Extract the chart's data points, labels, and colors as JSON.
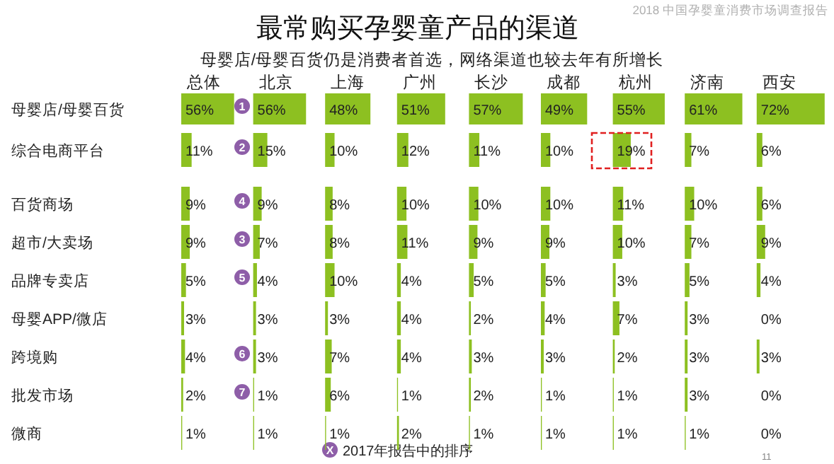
{
  "chart_data": [
    {
      "type": "other",
      "title": "最常购买孕婴童产品的渠道",
      "subtitle": "母婴店/母婴百货仍是消费者首选，网络渠道也较去年有所增长",
      "annotations": [
        "2018 中国孕婴童消费市场调查报告",
        "X",
        "2017年报告中的排序",
        "11"
      ]
    },
    {
      "type": "bar",
      "orientation": "horizontal",
      "title": "总体",
      "categories": [
        "母婴店/母婴百货",
        "综合电商平台",
        "百货商场",
        "超市/大卖场",
        "品牌专卖店",
        "母婴APP/微店",
        "跨境购",
        "批发市场",
        "微商"
      ],
      "values": [
        56,
        11,
        9,
        9,
        5,
        3,
        4,
        2,
        1
      ],
      "value_labels": [
        "56%",
        "11%",
        "9%",
        "9%",
        "5%",
        "3%",
        "4%",
        "2%",
        "1%"
      ],
      "color": "#8dc021",
      "tick_labels": "y",
      "annotations": [
        "1",
        "2",
        "4",
        "3",
        "5",
        "6",
        "7"
      ]
    },
    {
      "type": "bar",
      "orientation": "horizontal",
      "title": "北京",
      "categories": [
        null,
        null,
        null,
        null,
        null,
        null,
        null,
        null,
        null
      ],
      "values": [
        56,
        15,
        9,
        7,
        4,
        3,
        3,
        1,
        1
      ],
      "value_labels": [
        "56%",
        "15%",
        "9%",
        "7%",
        "4%",
        "3%",
        "3%",
        "1%",
        "1%"
      ],
      "color": "#8dc021",
      "tick_labels": false
    },
    {
      "type": "bar",
      "orientation": "horizontal",
      "title": "上海",
      "categories": [
        null,
        null,
        null,
        null,
        null,
        null,
        null,
        null,
        null
      ],
      "values": [
        48,
        10,
        8,
        8,
        10,
        3,
        7,
        6,
        1
      ],
      "value_labels": [
        "48%",
        "10%",
        "8%",
        "8%",
        "10%",
        "3%",
        "7%",
        "6%",
        "1%"
      ],
      "color": "#8dc021",
      "tick_labels": false
    },
    {
      "type": "bar",
      "orientation": "horizontal",
      "title": "广州",
      "categories": [
        null,
        null,
        null,
        null,
        null,
        null,
        null,
        null,
        null
      ],
      "values": [
        51,
        12,
        10,
        11,
        4,
        4,
        4,
        1,
        2
      ],
      "value_labels": [
        "51%",
        "12%",
        "10%",
        "11%",
        "4%",
        "4%",
        "4%",
        "1%",
        "2%"
      ],
      "color": "#8dc021",
      "tick_labels": false
    },
    {
      "type": "bar",
      "orientation": "horizontal",
      "title": "长沙",
      "categories": [
        null,
        null,
        null,
        null,
        null,
        null,
        null,
        null,
        null
      ],
      "values": [
        57,
        11,
        10,
        9,
        5,
        2,
        3,
        2,
        1
      ],
      "value_labels": [
        "57%",
        "11%",
        "10%",
        "9%",
        "5%",
        "2%",
        "3%",
        "2%",
        "1%"
      ],
      "color": "#8dc021",
      "tick_labels": false
    },
    {
      "type": "bar",
      "orientation": "horizontal",
      "title": "成都",
      "categories": [
        null,
        null,
        null,
        null,
        null,
        null,
        null,
        null,
        null
      ],
      "values": [
        49,
        10,
        10,
        9,
        5,
        4,
        3,
        1,
        1
      ],
      "value_labels": [
        "49%",
        "10%",
        "10%",
        "9%",
        "5%",
        "4%",
        "3%",
        "1%",
        "1%"
      ],
      "color": "#8dc021",
      "tick_labels": false
    },
    {
      "type": "bar",
      "orientation": "horizontal",
      "title": "杭州",
      "categories": [
        null,
        null,
        null,
        null,
        null,
        null,
        null,
        null,
        null
      ],
      "values": [
        55,
        19,
        11,
        10,
        3,
        7,
        2,
        1,
        1
      ],
      "value_labels": [
        "55%",
        "19%",
        "11%",
        "10%",
        "3%",
        "7%",
        "2%",
        "1%",
        "1%"
      ],
      "color": "#8dc021",
      "tick_labels": false
    },
    {
      "type": "bar",
      "orientation": "horizontal",
      "title": "济南",
      "categories": [
        null,
        null,
        null,
        null,
        null,
        null,
        null,
        null,
        null
      ],
      "values": [
        61,
        7,
        10,
        7,
        5,
        3,
        3,
        3,
        1
      ],
      "value_labels": [
        "61%",
        "7%",
        "10%",
        "7%",
        "5%",
        "3%",
        "3%",
        "3%",
        "1%"
      ],
      "color": "#8dc021",
      "tick_labels": false
    },
    {
      "type": "bar",
      "orientation": "horizontal",
      "title": "西安",
      "categories": [
        null,
        null,
        null,
        null,
        null,
        null,
        null,
        null,
        null
      ],
      "values": [
        72,
        6,
        6,
        9,
        4,
        0,
        3,
        0,
        0
      ],
      "value_labels": [
        "72%",
        "6%",
        "6%",
        "9%",
        "4%",
        "0%",
        "3%",
        "0%",
        "0%"
      ],
      "color": "#8dc021",
      "tick_labels": false
    }
  ]
}
